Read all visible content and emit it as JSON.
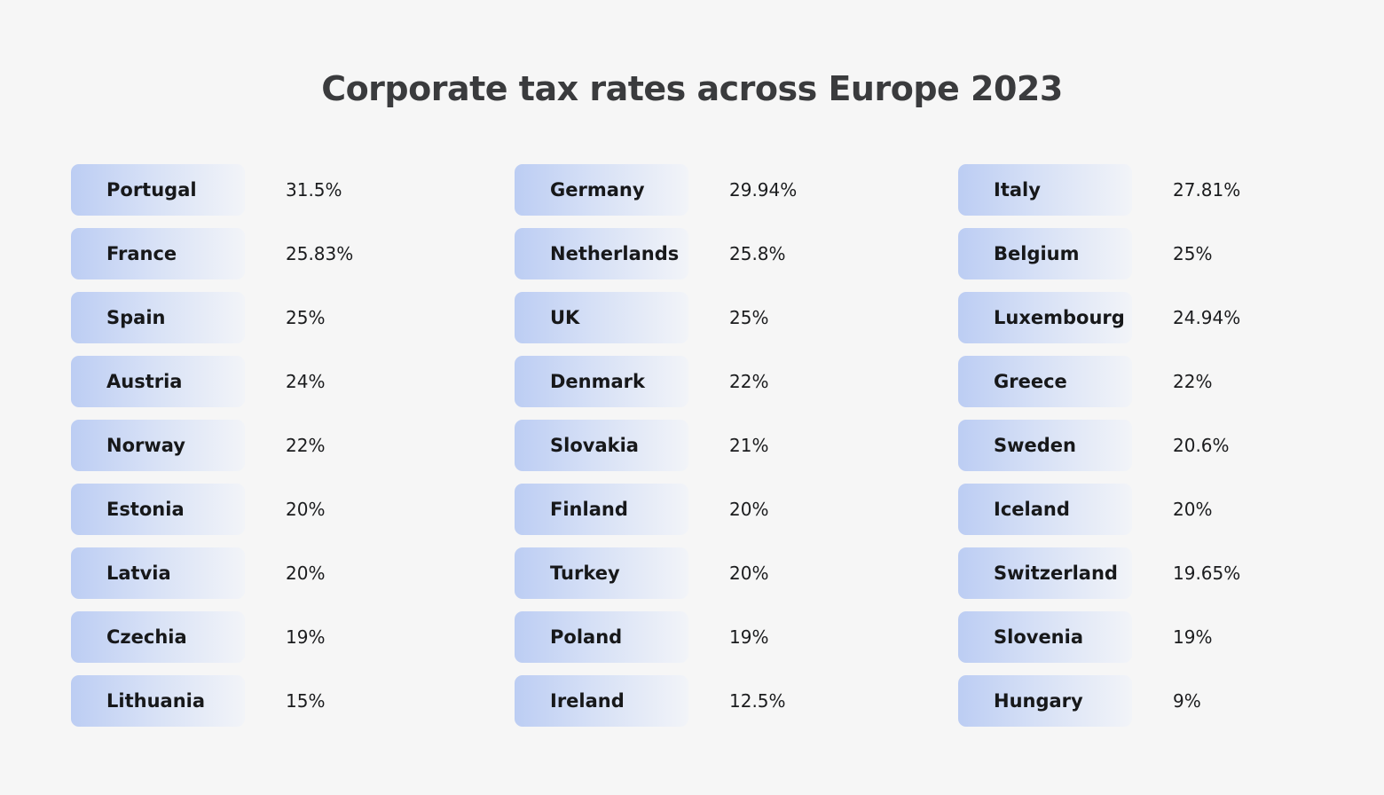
{
  "title": "Corporate tax rates across Europe 2023",
  "colors": {
    "pill_start": "#bccdf3",
    "pill_end": "#f2f4f8",
    "background": "#f6f6f6"
  },
  "columns": [
    [
      {
        "country": "Portugal",
        "rate": "31.5%"
      },
      {
        "country": "France",
        "rate": "25.83%"
      },
      {
        "country": "Spain",
        "rate": "25%"
      },
      {
        "country": "Austria",
        "rate": "24%"
      },
      {
        "country": "Norway",
        "rate": "22%"
      },
      {
        "country": "Estonia",
        "rate": "20%"
      },
      {
        "country": "Latvia",
        "rate": "20%"
      },
      {
        "country": "Czechia",
        "rate": "19%"
      },
      {
        "country": "Lithuania",
        "rate": "15%"
      }
    ],
    [
      {
        "country": "Germany",
        "rate": "29.94%"
      },
      {
        "country": "Netherlands",
        "rate": "25.8%"
      },
      {
        "country": "UK",
        "rate": "25%"
      },
      {
        "country": "Denmark",
        "rate": "22%"
      },
      {
        "country": "Slovakia",
        "rate": "21%"
      },
      {
        "country": "Finland",
        "rate": "20%"
      },
      {
        "country": "Turkey",
        "rate": "20%"
      },
      {
        "country": "Poland",
        "rate": "19%"
      },
      {
        "country": "Ireland",
        "rate": "12.5%"
      }
    ],
    [
      {
        "country": "Italy",
        "rate": "27.81%"
      },
      {
        "country": "Belgium",
        "rate": "25%"
      },
      {
        "country": "Luxembourg",
        "rate": "24.94%"
      },
      {
        "country": "Greece",
        "rate": "22%"
      },
      {
        "country": "Sweden",
        "rate": "20.6%"
      },
      {
        "country": "Iceland",
        "rate": "20%"
      },
      {
        "country": "Switzerland",
        "rate": "19.65%"
      },
      {
        "country": "Slovenia",
        "rate": "19%"
      },
      {
        "country": "Hungary",
        "rate": "9%"
      }
    ]
  ]
}
